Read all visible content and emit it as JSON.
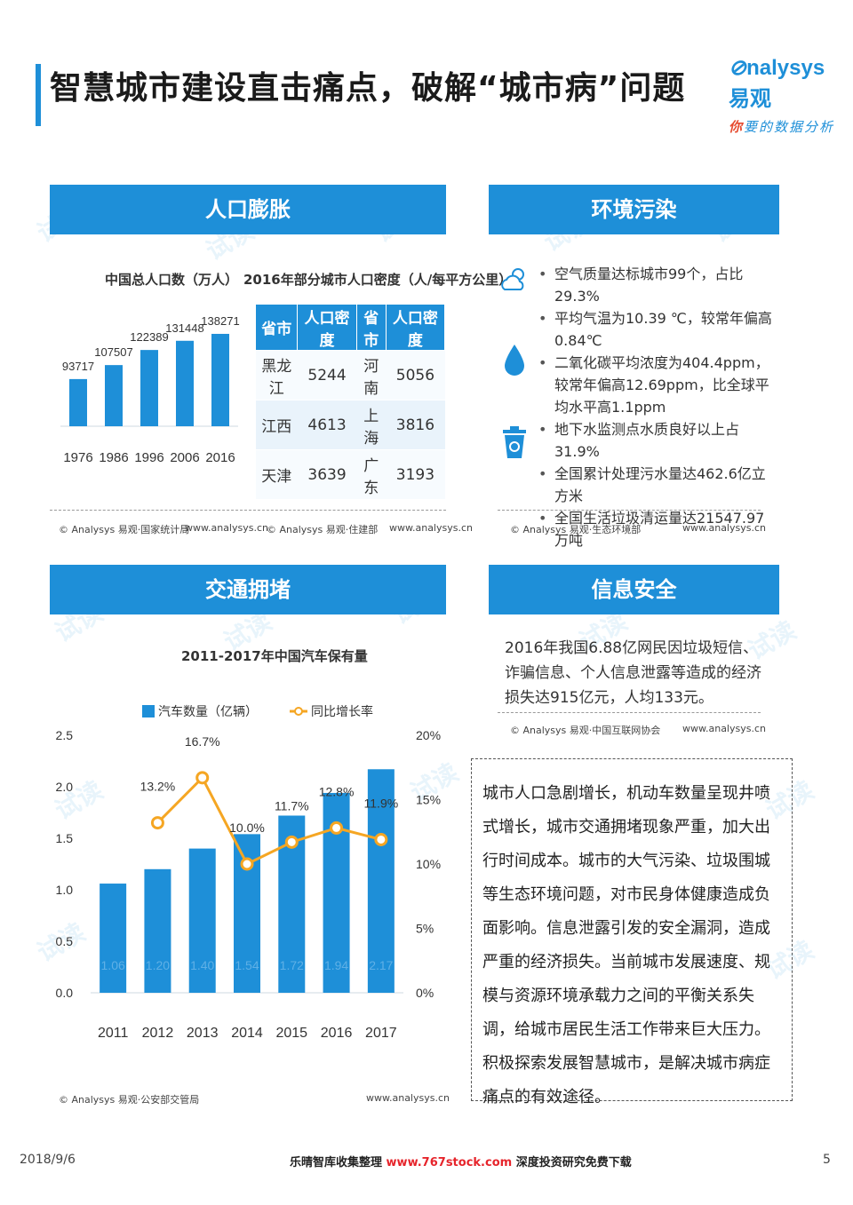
{
  "page": {
    "title": "智慧城市建设直击痛点，破解“城市病”问题",
    "logo": {
      "brand": "nalysys",
      "brand_cn": "易观",
      "tagline_lead": "你",
      "tagline_rest": "要的数据分析"
    },
    "footer": {
      "date": "2018/9/6",
      "mid_a": "乐晴智库收集整理",
      "mid_url": "www.767stock.com",
      "mid_b": "深度投资研究免费下载",
      "page_num": "5"
    },
    "watermark": "试读"
  },
  "population": {
    "header": "人口膨胀",
    "chart_title": "中国总人口数（万人）",
    "source": "© Analysys 易观·国家统计局",
    "site": "www.analysys.cn"
  },
  "density": {
    "title": "2016年部分城市人口密度（人/每平方公里）",
    "headers": [
      "省市",
      "人口密度",
      "省市",
      "人口密度"
    ],
    "rows": [
      [
        "黑龙江",
        "5244",
        "河南",
        "5056"
      ],
      [
        "江西",
        "4613",
        "上海",
        "3816"
      ],
      [
        "天津",
        "3639",
        "广东",
        "3193"
      ]
    ],
    "source": "© Analysys 易观·住建部",
    "site": "www.analysys.cn"
  },
  "environment": {
    "header": "环境污染",
    "items": [
      "空气质量达标城市99个，占比29.3%",
      "平均气温为10.39 ℃，较常年偏高0.84℃",
      "二氧化碳平均浓度为404.4ppm，较常年偏高12.69ppm，比全球平均水平高1.1ppm",
      "地下水监测点水质良好以上占31.9%",
      "全国累计处理污水量达462.6亿立方米",
      "全国生活垃圾清运量达21547.97万吨"
    ],
    "icons": [
      "weather-icon",
      "water-drop-icon",
      "trash-bin-icon"
    ],
    "source": "© Analysys 易观·生态环境部",
    "site": "www.analysys.cn"
  },
  "traffic": {
    "header": "交通拥堵",
    "chart_title": "2011-2017年中国汽车保有量",
    "legend_bar": "汽车数量（亿辆）",
    "legend_line": "同比增长率",
    "source": "© Analysys 易观·公安部交管局",
    "site": "www.analysys.cn"
  },
  "info_security": {
    "header": "信息安全",
    "text": "2016年我国6.88亿网民因垃圾短信、诈骗信息、个人信息泄露等造成的经济损失达915亿元，人均133元。",
    "source": "© Analysys 易观·中国互联网协会",
    "site": "www.analysys.cn"
  },
  "summary": "城市人口急剧增长，机动车数量呈现井喷式增长，城市交通拥堵现象严重，加大出行时间成本。城市的大气污染、垃圾围城等生态环境问题，对市民身体健康造成负面影响。信息泄露引发的安全漏洞，造成严重的经济损失。当前城市发展速度、规模与资源环境承载力之间的平衡关系失调，给城市居民生活工作带来巨大压力。积极探索发展智慧城市，是解决城市病症痛点的有效途径。",
  "colors": {
    "accent": "#1e8fd8",
    "line": "#f5a623",
    "bar_light": "#5fb0e6"
  },
  "chart_data": [
    {
      "type": "bar",
      "title": "中国总人口数（万人）",
      "categories": [
        "1976",
        "1986",
        "1996",
        "2006",
        "2016"
      ],
      "values": [
        93717,
        107507,
        122389,
        131448,
        138271
      ],
      "ylim": [
        70000,
        140000
      ]
    },
    {
      "type": "bar",
      "title": "2011-2017年中国汽车保有量",
      "categories": [
        "2011",
        "2012",
        "2013",
        "2014",
        "2015",
        "2016",
        "2017"
      ],
      "series": [
        {
          "name": "汽车数量（亿辆）",
          "type": "bar",
          "axis": "left",
          "values": [
            1.06,
            1.2,
            1.4,
            1.54,
            1.72,
            1.94,
            2.17
          ],
          "labels": [
            "1.06",
            "1.20",
            "1.40",
            "1.54",
            "1.72",
            "1.94",
            "2.17"
          ]
        },
        {
          "name": "同比增长率",
          "type": "line",
          "axis": "right",
          "values": [
            null,
            13.2,
            16.7,
            10.0,
            11.7,
            12.8,
            11.9
          ],
          "labels": [
            "",
            "13.2%",
            "16.7%",
            "10.0%",
            "11.7%",
            "12.8%",
            "11.9%"
          ]
        }
      ],
      "y_left": {
        "ticks": [
          "0.0",
          "0.5",
          "1.0",
          "1.5",
          "2.0",
          "2.5"
        ],
        "range": [
          0,
          2.5
        ]
      },
      "y_right": {
        "ticks": [
          "0%",
          "5%",
          "10%",
          "15%",
          "20%"
        ],
        "range": [
          0,
          20
        ]
      }
    }
  ]
}
